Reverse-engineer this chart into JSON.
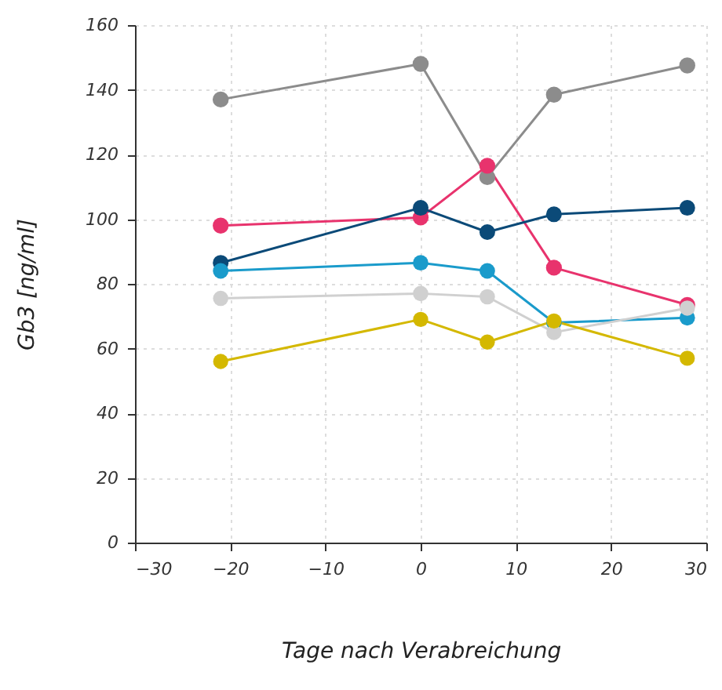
{
  "chart_data": {
    "type": "line",
    "xlabel": "Tage nach Verabreichung",
    "ylabel": "Gb3 [ng/ml]",
    "x": [
      -21,
      0,
      7,
      14,
      28
    ],
    "series": [
      {
        "color": "#8c8c8c",
        "values": [
          137,
          148,
          113,
          138.5,
          147.5
        ]
      },
      {
        "color": "#e8336d",
        "values": [
          98,
          100.5,
          116.5,
          85,
          73.5
        ]
      },
      {
        "color": "#0b4a78",
        "values": [
          86.5,
          103.5,
          96,
          101.5,
          103.5
        ]
      },
      {
        "color": "#1a9bcb",
        "values": [
          84,
          86.5,
          84,
          68,
          69.5
        ]
      },
      {
        "color": "#d0d0d0",
        "values": [
          75.5,
          77,
          76,
          65,
          72.5
        ]
      },
      {
        "color": "#d4b800",
        "values": [
          56,
          69,
          62,
          68.5,
          57
        ]
      }
    ],
    "xlim": [
      -30,
      30
    ],
    "xticks": [
      -30,
      -20,
      -10,
      0,
      10,
      20,
      30
    ],
    "ylim": [
      0,
      160
    ],
    "yticks": [
      0,
      20,
      40,
      60,
      80,
      100,
      120,
      140,
      160
    ],
    "grid": true,
    "marker": "circle",
    "line_style": "solid"
  }
}
